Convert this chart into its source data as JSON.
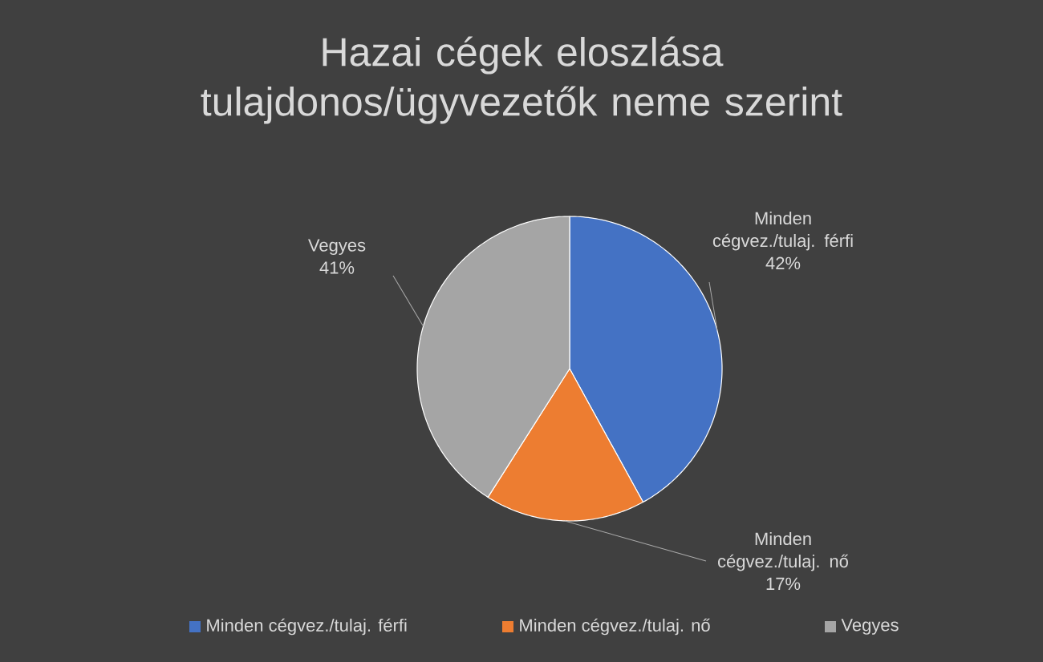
{
  "chart_data": {
    "type": "pie",
    "title": "Hazai cégek eloszlása tulajdonos/ügyvezetők neme szerint",
    "categories": [
      "Minden cégvez./tulaj. férfi",
      "Minden cégvez./tulaj. nő",
      "Vegyes"
    ],
    "values": [
      42,
      17,
      41
    ],
    "value_labels": [
      "42%",
      "17%",
      "41%"
    ],
    "colors": [
      "#4472c4",
      "#ed7d31",
      "#a5a5a5"
    ],
    "legend": "bottom"
  }
}
